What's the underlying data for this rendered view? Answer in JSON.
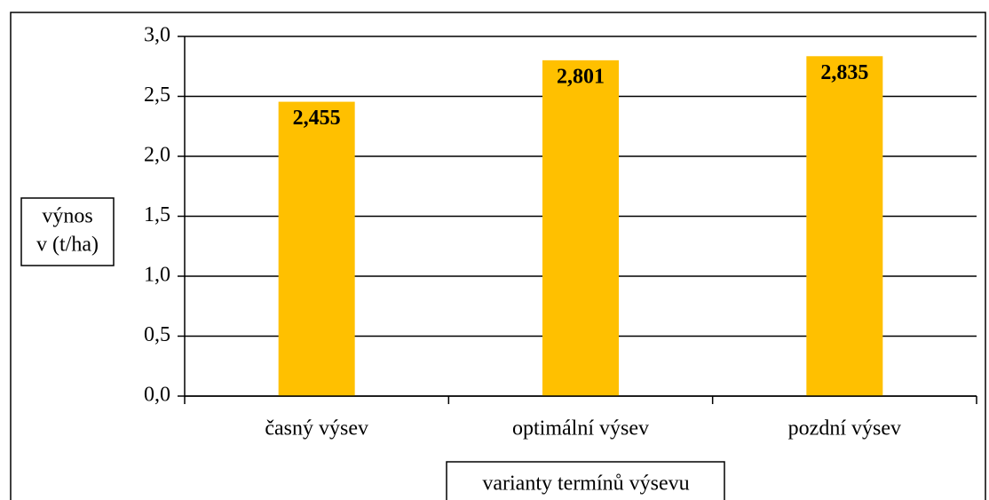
{
  "chart_data": {
    "type": "bar",
    "categories": [
      "časný výsev",
      "optimální výsev",
      "pozdní výsev"
    ],
    "values": [
      2.455,
      2.801,
      2.835
    ],
    "value_labels": [
      "2,455",
      "2,801",
      "2,835"
    ],
    "color": "#ffc000",
    "y_label": [
      "výnos",
      "v (t/ha)"
    ],
    "x_label": "varianty termínů výsevu",
    "ylim": [
      0,
      3
    ],
    "yticks": [
      {
        "value": 0,
        "label": "0,0"
      },
      {
        "value": 0.5,
        "label": "0,5"
      },
      {
        "value": 1,
        "label": "1,0"
      },
      {
        "value": 1.5,
        "label": "1,5"
      },
      {
        "value": 2,
        "label": "2,0"
      },
      {
        "value": 2.5,
        "label": "2,5"
      },
      {
        "value": 3,
        "label": "3,0"
      }
    ],
    "grid": true
  }
}
